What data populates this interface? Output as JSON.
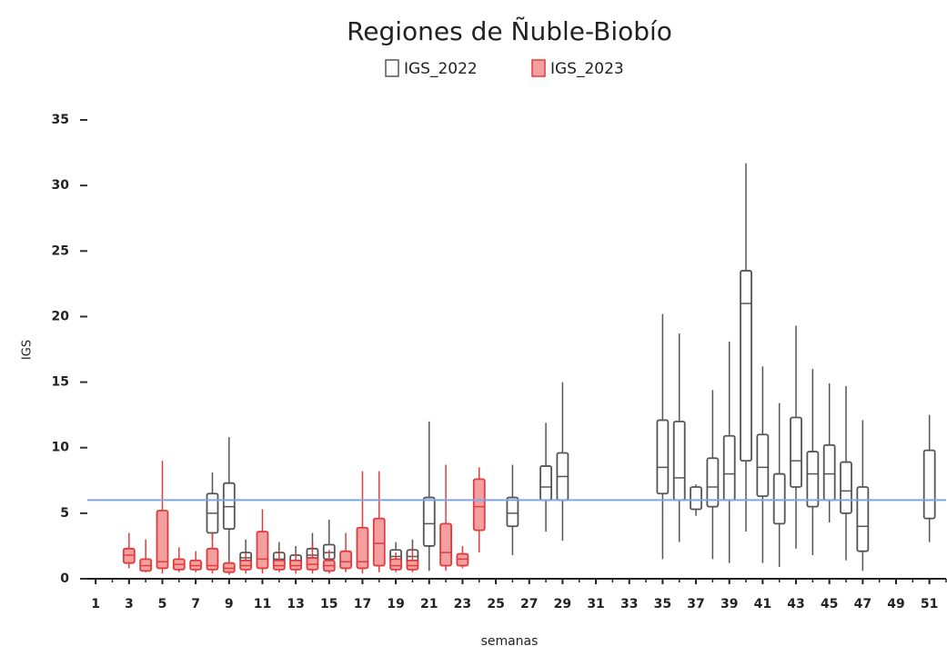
{
  "chart_data": {
    "type": "box",
    "title": "Regiones de Ñuble-Biobío",
    "x_label": "semanas",
    "y_label": "IGS",
    "xlim": [
      0.5,
      52
    ],
    "xticks": [
      1,
      3,
      5,
      7,
      9,
      11,
      13,
      15,
      17,
      19,
      21,
      23,
      25,
      27,
      29,
      31,
      33,
      35,
      37,
      39,
      41,
      43,
      45,
      47,
      49,
      51
    ],
    "ylim": [
      0,
      35
    ],
    "yticks": [
      0,
      5,
      10,
      15,
      20,
      25,
      30,
      35
    ],
    "reference_line": {
      "value": 6,
      "color": "#7ea6e8"
    },
    "series": [
      {
        "name": "IGS_2022",
        "color": "#555555",
        "fill": "#ffffff",
        "x": [
          8,
          9,
          10,
          12,
          13,
          14,
          15,
          19,
          20,
          21,
          26,
          28,
          29,
          35,
          36,
          37,
          38,
          39,
          40,
          41,
          42,
          43,
          44,
          45,
          46,
          47,
          51
        ],
        "min": [
          3,
          1,
          0.8,
          0.8,
          0.8,
          1,
          1,
          0.8,
          0.8,
          0.6,
          1.8,
          3.6,
          2.9,
          1.5,
          2.8,
          4.8,
          1.5,
          1.2,
          3.6,
          1.2,
          0.9,
          2.3,
          1.8,
          4.3,
          1.4,
          0.6,
          2.8
        ],
        "q1": [
          3.5,
          3.8,
          1.2,
          1,
          1,
          1.3,
          1.5,
          1.2,
          1.2,
          2.5,
          4,
          6,
          6,
          6.5,
          6,
          5.3,
          5.5,
          6,
          9,
          6.3,
          4.2,
          7,
          5.5,
          6,
          5,
          2.1,
          4.6
        ],
        "median": [
          5,
          5.5,
          1.6,
          1.5,
          1.4,
          1.8,
          2,
          1.7,
          1.7,
          4.2,
          5,
          7,
          7.8,
          8.5,
          7.7,
          6,
          7,
          8,
          21,
          8.5,
          6,
          9,
          8,
          8,
          6.7,
          4,
          6
        ],
        "q3": [
          6.5,
          7.3,
          2,
          2,
          1.8,
          2.3,
          2.6,
          2.2,
          2.2,
          6.2,
          6.2,
          8.6,
          9.6,
          12.1,
          12,
          7,
          9.2,
          10.9,
          23.5,
          11,
          8,
          12.3,
          9.7,
          10.2,
          8.9,
          7,
          9.8
        ],
        "max": [
          8.1,
          10.8,
          3,
          2.8,
          2.5,
          3.5,
          4.5,
          2.8,
          3,
          12,
          8.7,
          11.9,
          15,
          20.2,
          18.7,
          7.2,
          14.4,
          18.1,
          31.7,
          16.2,
          13.4,
          19.3,
          16,
          14.9,
          14.7,
          12.1,
          12.5
        ]
      },
      {
        "name": "IGS_2023",
        "color": "#e03c3c",
        "fill": "#f4a0a0",
        "x": [
          3,
          4,
          5,
          6,
          7,
          8,
          9,
          10,
          11,
          12,
          13,
          14,
          15,
          16,
          17,
          18,
          19,
          20,
          22,
          23,
          24
        ],
        "min": [
          0.8,
          0.5,
          0.4,
          0.5,
          0.5,
          0.4,
          0.3,
          0.4,
          0.4,
          0.5,
          0.4,
          0.4,
          0.4,
          0.5,
          0.4,
          0.5,
          0.5,
          0.5,
          0.6,
          0.8,
          2
        ],
        "q1": [
          1.2,
          0.6,
          0.8,
          0.7,
          0.7,
          0.7,
          0.5,
          0.7,
          0.8,
          0.7,
          0.7,
          0.7,
          0.6,
          0.8,
          0.8,
          1,
          0.7,
          0.7,
          1,
          1,
          3.7
        ],
        "median": [
          1.8,
          1,
          1.3,
          1.1,
          1,
          1,
          0.8,
          1,
          1.5,
          1,
          1,
          1.1,
          1,
          1.3,
          1.3,
          2.7,
          1,
          1,
          2,
          1.5,
          5.5
        ],
        "q3": [
          2.3,
          1.5,
          5.2,
          1.5,
          1.4,
          2.3,
          1.2,
          1.4,
          3.6,
          1.4,
          1.4,
          1.6,
          1.4,
          2.1,
          3.9,
          4.6,
          1.5,
          1.4,
          4.2,
          1.9,
          7.6
        ],
        "max": [
          3.5,
          3,
          9,
          2.4,
          2.1,
          3.5,
          1.5,
          2,
          5.3,
          2.2,
          2,
          2.7,
          2.2,
          3.5,
          8.2,
          8.2,
          2,
          2.2,
          8.7,
          2.5,
          8.5
        ]
      }
    ]
  }
}
